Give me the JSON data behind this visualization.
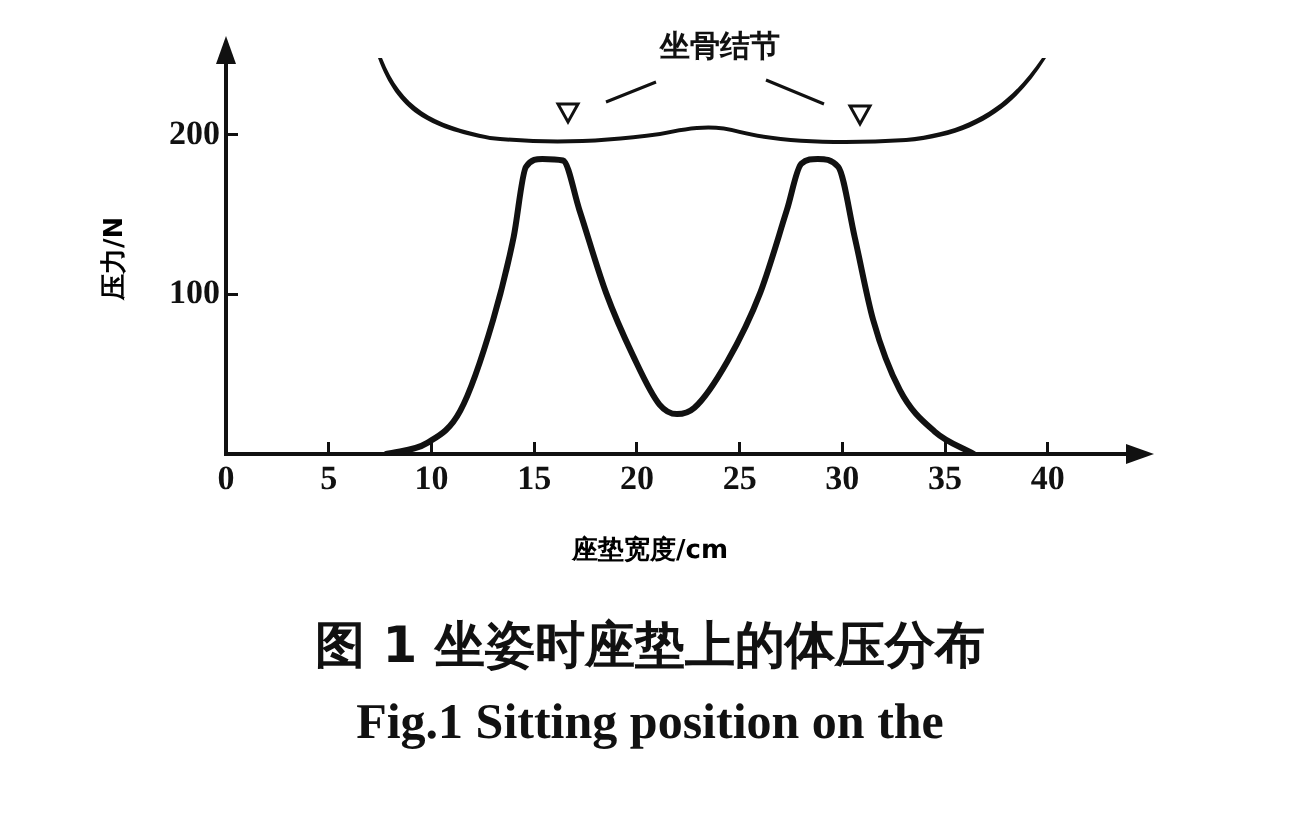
{
  "chart_data": {
    "type": "line",
    "title": "图 1  坐姿时座垫上的体压分布",
    "subtitle": "Fig.1 Sitting position on the",
    "xlabel": "座垫宽度/cm",
    "ylabel": "压力/N",
    "annotations": [
      "坐骨结节"
    ],
    "x": [
      7.8,
      9.8,
      11.4,
      13,
      14,
      14.6,
      15.4,
      16.4,
      17.2,
      18.5,
      19.8,
      21.1,
      21.95,
      22.8,
      24.4,
      26,
      27.3,
      28,
      28.8,
      29.8,
      30.6,
      31.5,
      32.8,
      34.5,
      36.4
    ],
    "series": [
      {
        "color": "#111111",
        "values": [
          0,
          7,
          27,
          84,
          136,
          180,
          185,
          184,
          153,
          101,
          62,
          31,
          25,
          29,
          58,
          101,
          153,
          182,
          185,
          180,
          136,
          84,
          40,
          14,
          0
        ]
      }
    ],
    "xlim": [
      0,
      44
    ],
    "xticks": [
      0,
      5,
      10,
      15,
      20,
      25,
      30,
      35,
      40
    ],
    "ylim": [
      0,
      247
    ],
    "yticks": [
      100,
      200
    ],
    "grid": false,
    "legend": false,
    "marker": "none",
    "line_style": "solid"
  }
}
